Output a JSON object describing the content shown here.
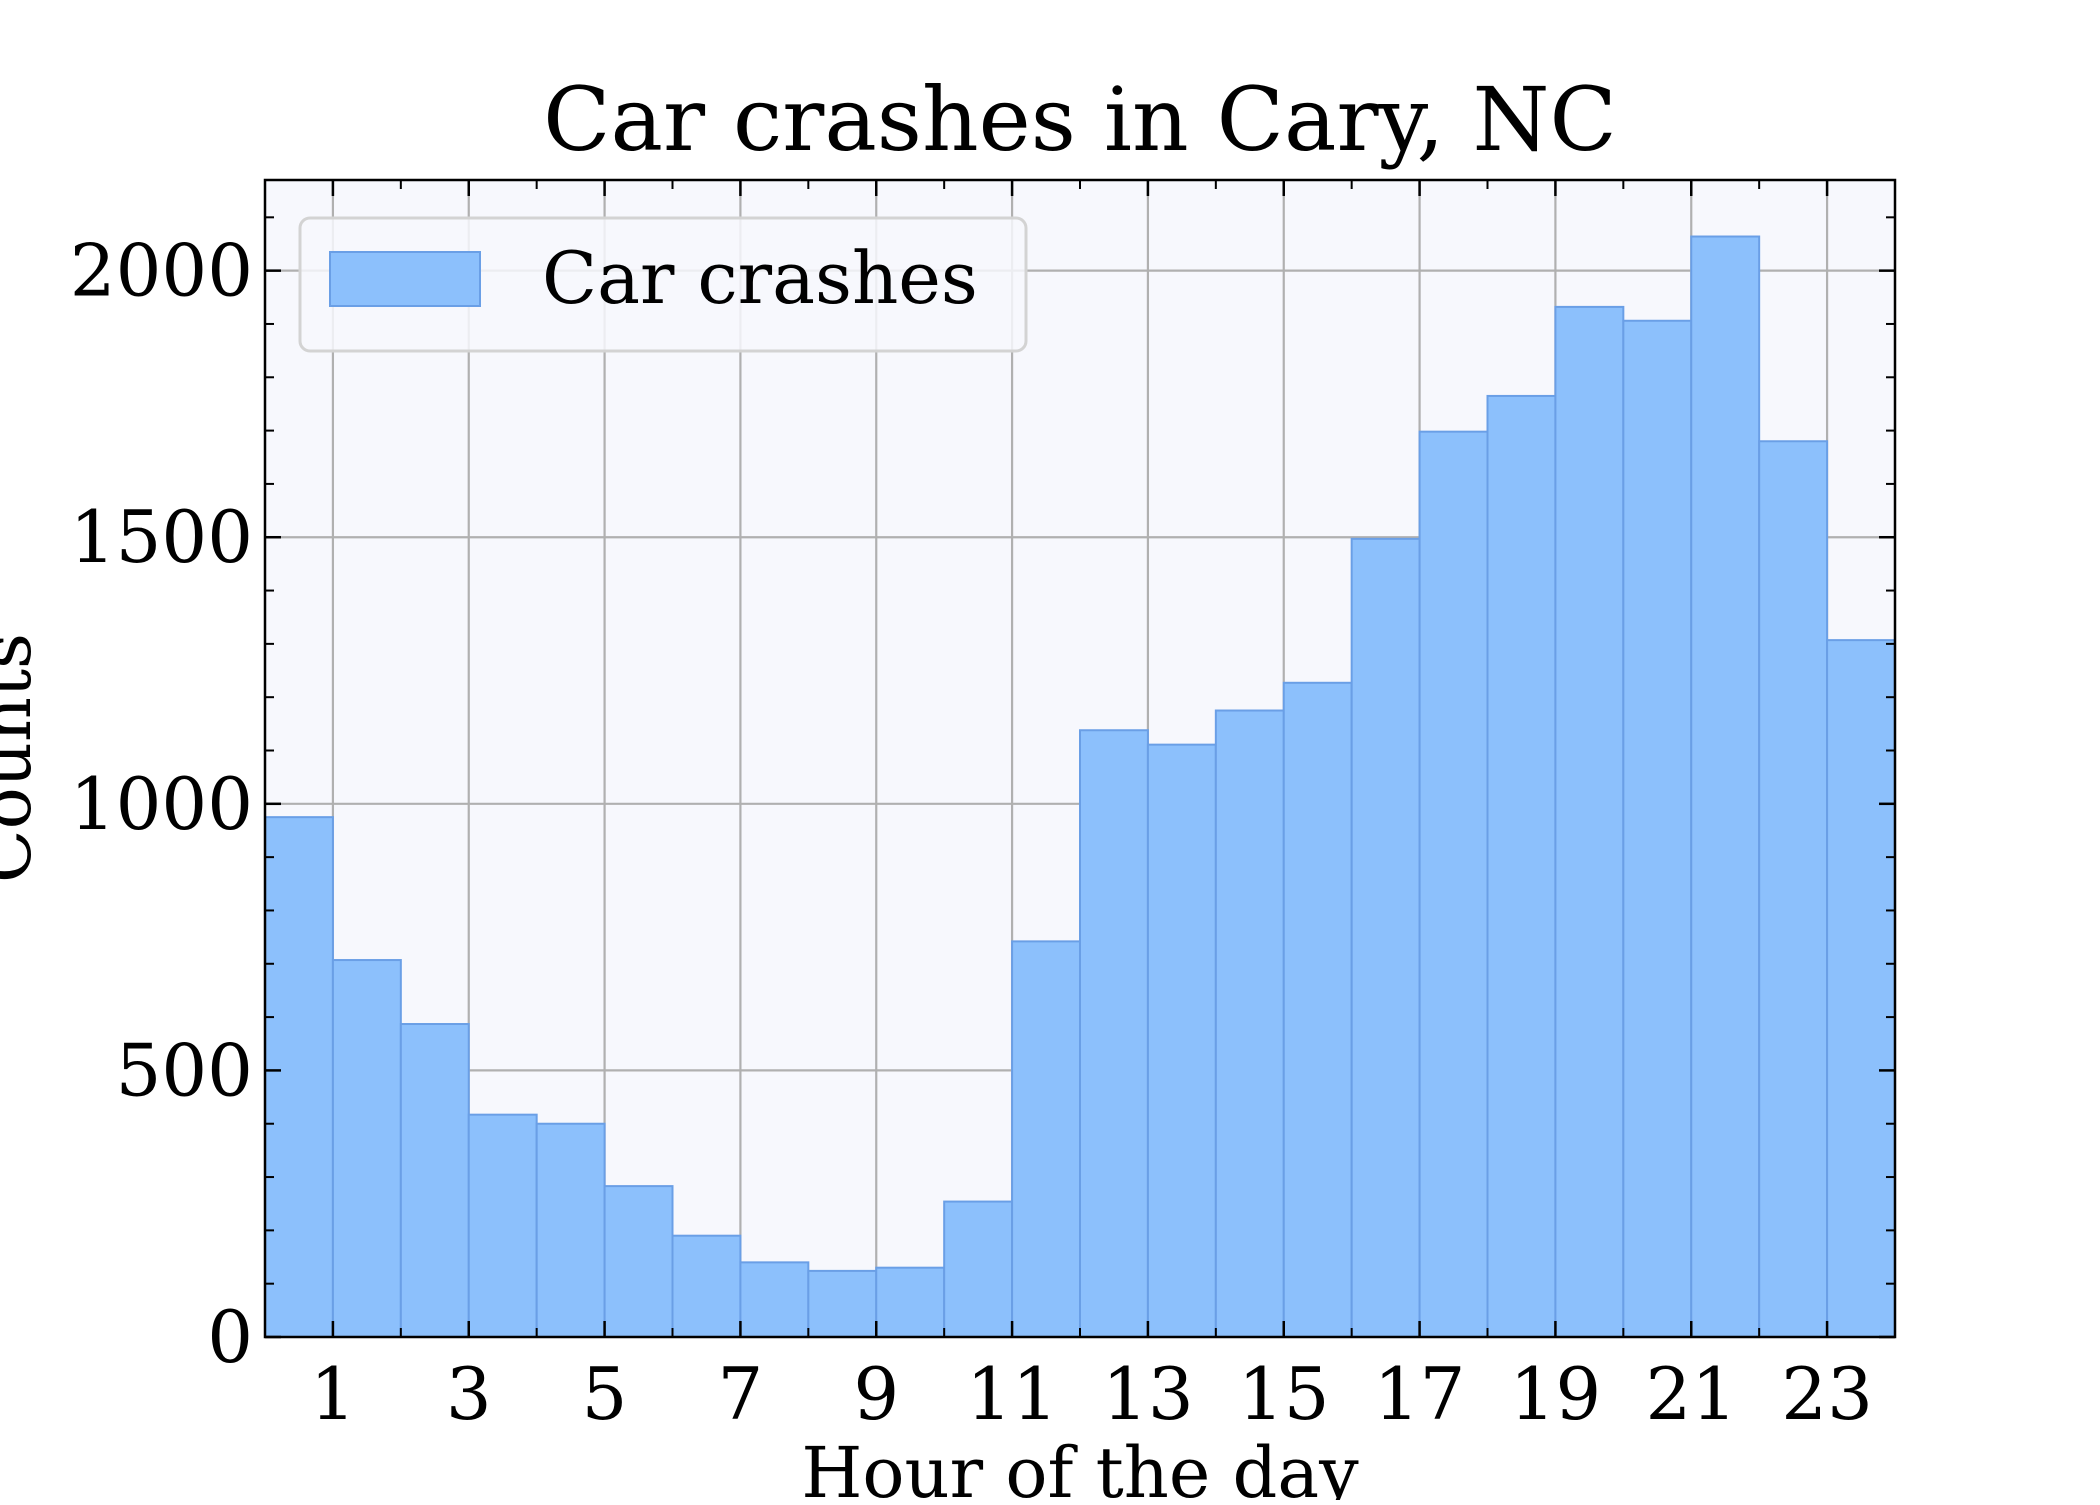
{
  "chart_data": {
    "type": "bar",
    "title": "Car crashes in Cary, NC",
    "xlabel": "Hour of the day",
    "ylabel": "Counts",
    "x_bin_edges_start": 0,
    "x_bin_width": 1,
    "x_range": [
      0,
      24
    ],
    "ylim": [
      0,
      2170
    ],
    "x_ticks": [
      "1",
      "3",
      "5",
      "7",
      "9",
      "11",
      "13",
      "15",
      "17",
      "19",
      "21",
      "23"
    ],
    "y_ticks": [
      "0",
      "500",
      "1000",
      "1500",
      "2000"
    ],
    "grid": true,
    "legend_position": "top-left",
    "series": [
      {
        "name": "Car crashes",
        "color": "#8cc0fc",
        "edge_color": "#6a9fe6",
        "values": [
          975,
          707,
          587,
          417,
          400,
          283,
          190,
          140,
          124,
          130,
          254,
          742,
          1138,
          1111,
          1175,
          1227,
          1497,
          1698,
          1765,
          1932,
          1906,
          2064,
          1680,
          1307
        ]
      }
    ],
    "colors": {
      "plot_background": "#f7f8fd",
      "grid": "#b0b0b0",
      "axes": "#000000"
    }
  }
}
